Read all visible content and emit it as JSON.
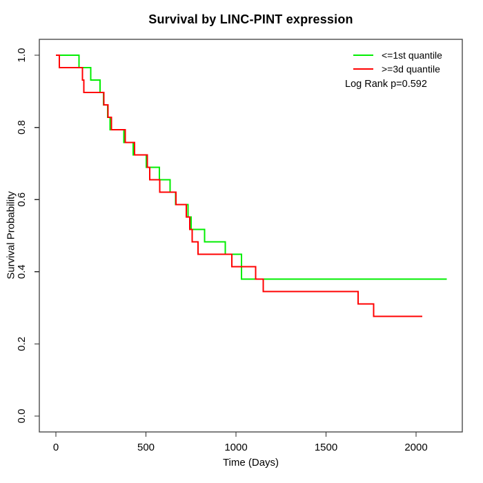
{
  "title": "Survival by LINC-PINT expression",
  "chart_data": {
    "type": "line",
    "subtype": "kaplan-meier-step",
    "title": "Survival by LINC-PINT expression",
    "xlabel": "Time (Days)",
    "ylabel": "Survival Probability",
    "xlim": [
      0,
      2260
    ],
    "ylim": [
      0,
      1
    ],
    "x_ticks": [
      0,
      500,
      1000,
      1500,
      2000
    ],
    "x_tick_labels": [
      "0",
      "500",
      "1000",
      "1500",
      "2000"
    ],
    "y_ticks": [
      0.0,
      0.2,
      0.4,
      0.6,
      0.8,
      1.0
    ],
    "y_tick_labels": [
      "0.0",
      "0.2",
      "0.4",
      "0.6",
      "0.8",
      "1.0"
    ],
    "grid": false,
    "legend_position": "top-right",
    "annotation": "Log Rank p=0.592",
    "series": [
      {
        "name": "<=1st quantile",
        "color": "#00ee00",
        "start": [
          0,
          1.0
        ],
        "drops": [
          [
            128,
            0.9655
          ],
          [
            194,
            0.931
          ],
          [
            245,
            0.8966
          ],
          [
            265,
            0.8621
          ],
          [
            287,
            0.8276
          ],
          [
            300,
            0.7931
          ],
          [
            377,
            0.7586
          ],
          [
            430,
            0.7241
          ],
          [
            502,
            0.6897
          ],
          [
            575,
            0.6552
          ],
          [
            635,
            0.6207
          ],
          [
            664,
            0.5862
          ],
          [
            734,
            0.5517
          ],
          [
            751,
            0.5172
          ],
          [
            826,
            0.4828
          ],
          [
            941,
            0.4483
          ],
          [
            1031,
            0.3793
          ]
        ],
        "end_time": 2170
      },
      {
        "name": ">=3d quantile",
        "color": "#ff0000",
        "start": [
          0,
          1.0
        ],
        "drops": [
          [
            19,
            0.9655
          ],
          [
            147,
            0.931
          ],
          [
            156,
            0.8966
          ],
          [
            267,
            0.8621
          ],
          [
            290,
            0.8276
          ],
          [
            309,
            0.7931
          ],
          [
            386,
            0.7586
          ],
          [
            437,
            0.7241
          ],
          [
            507,
            0.6897
          ],
          [
            522,
            0.6552
          ],
          [
            577,
            0.6207
          ],
          [
            667,
            0.5862
          ],
          [
            724,
            0.5517
          ],
          [
            743,
            0.5172
          ],
          [
            756,
            0.4828
          ],
          [
            790,
            0.4483
          ],
          [
            977,
            0.4138
          ],
          [
            1110,
            0.3793
          ],
          [
            1152,
            0.3448
          ],
          [
            1678,
            0.3103
          ],
          [
            1765,
            0.2759
          ]
        ],
        "end_time": 2034
      }
    ]
  },
  "colors": {
    "axis": "#4a4a4a",
    "tick": "#2a2a2a",
    "text": "#000000",
    "background": "#ffffff"
  }
}
